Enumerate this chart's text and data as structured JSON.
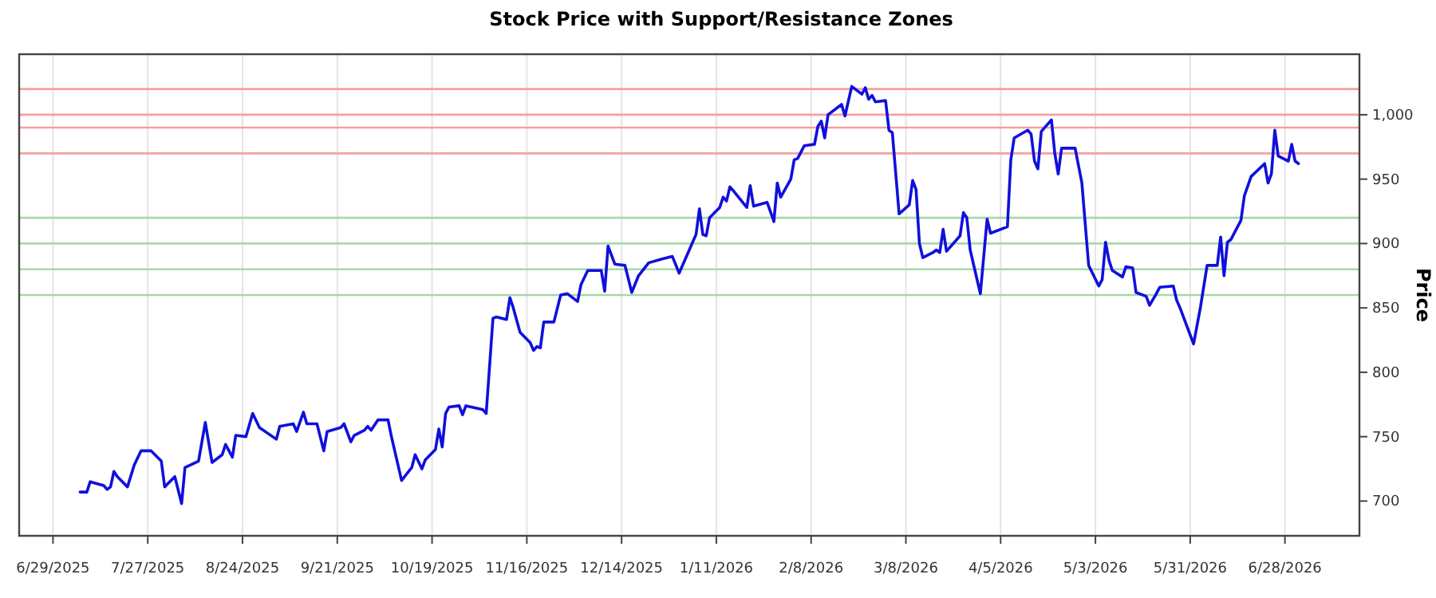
{
  "chart_data": {
    "type": "line",
    "title": "Stock Price with Support/Resistance Zones",
    "ylabel": "Price",
    "x": [
      "2025-07-07",
      "2025-07-09",
      "2025-07-10",
      "2025-07-14",
      "2025-07-15",
      "2025-07-16",
      "2025-07-17",
      "2025-07-18",
      "2025-07-21",
      "2025-07-23",
      "2025-07-25",
      "2025-07-28",
      "2025-07-31",
      "2025-08-01",
      "2025-08-04",
      "2025-08-06",
      "2025-08-07",
      "2025-08-11",
      "2025-08-13",
      "2025-08-15",
      "2025-08-18",
      "2025-08-19",
      "2025-08-21",
      "2025-08-22",
      "2025-08-25",
      "2025-08-27",
      "2025-08-29",
      "2025-09-03",
      "2025-09-04",
      "2025-09-08",
      "2025-09-09",
      "2025-09-11",
      "2025-09-12",
      "2025-09-15",
      "2025-09-17",
      "2025-09-18",
      "2025-09-22",
      "2025-09-23",
      "2025-09-25",
      "2025-09-26",
      "2025-09-29",
      "2025-09-30",
      "2025-10-01",
      "2025-10-03",
      "2025-10-06",
      "2025-10-07",
      "2025-10-10",
      "2025-10-13",
      "2025-10-14",
      "2025-10-16",
      "2025-10-17",
      "2025-10-20",
      "2025-10-21",
      "2025-10-22",
      "2025-10-23",
      "2025-10-24",
      "2025-10-27",
      "2025-10-28",
      "2025-10-29",
      "2025-11-03",
      "2025-11-04",
      "2025-11-06",
      "2025-11-07",
      "2025-11-10",
      "2025-11-11",
      "2025-11-12",
      "2025-11-14",
      "2025-11-17",
      "2025-11-18",
      "2025-11-19",
      "2025-11-20",
      "2025-11-21",
      "2025-11-24",
      "2025-11-26",
      "2025-11-28",
      "2025-12-01",
      "2025-12-02",
      "2025-12-04",
      "2025-12-08",
      "2025-12-09",
      "2025-12-10",
      "2025-12-12",
      "2025-12-15",
      "2025-12-17",
      "2025-12-19",
      "2025-12-22",
      "2025-12-26",
      "2025-12-29",
      "2025-12-31",
      "2026-01-02",
      "2026-01-05",
      "2026-01-06",
      "2026-01-07",
      "2026-01-08",
      "2026-01-09",
      "2026-01-12",
      "2026-01-13",
      "2026-01-14",
      "2026-01-15",
      "2026-01-16",
      "2026-01-20",
      "2026-01-21",
      "2026-01-22",
      "2026-01-26",
      "2026-01-28",
      "2026-01-29",
      "2026-01-30",
      "2026-02-02",
      "2026-02-03",
      "2026-02-04",
      "2026-02-06",
      "2026-02-09",
      "2026-02-10",
      "2026-02-11",
      "2026-02-12",
      "2026-02-13",
      "2026-02-17",
      "2026-02-18",
      "2026-02-20",
      "2026-02-23",
      "2026-02-24",
      "2026-02-25",
      "2026-02-26",
      "2026-02-27",
      "2026-03-02",
      "2026-03-03",
      "2026-03-04",
      "2026-03-06",
      "2026-03-09",
      "2026-03-10",
      "2026-03-11",
      "2026-03-12",
      "2026-03-13",
      "2026-03-16",
      "2026-03-17",
      "2026-03-18",
      "2026-03-19",
      "2026-03-20",
      "2026-03-24",
      "2026-03-25",
      "2026-03-26",
      "2026-03-27",
      "2026-03-30",
      "2026-04-01",
      "2026-04-02",
      "2026-04-07",
      "2026-04-08",
      "2026-04-09",
      "2026-04-13",
      "2026-04-14",
      "2026-04-15",
      "2026-04-16",
      "2026-04-17",
      "2026-04-20",
      "2026-04-21",
      "2026-04-22",
      "2026-04-23",
      "2026-04-27",
      "2026-04-29",
      "2026-05-01",
      "2026-05-04",
      "2026-05-05",
      "2026-05-06",
      "2026-05-07",
      "2026-05-08",
      "2026-05-11",
      "2026-05-12",
      "2026-05-14",
      "2026-05-15",
      "2026-05-18",
      "2026-05-19",
      "2026-05-21",
      "2026-05-22",
      "2026-05-26",
      "2026-05-27",
      "2026-05-28",
      "2026-06-01",
      "2026-06-03",
      "2026-06-05",
      "2026-06-08",
      "2026-06-09",
      "2026-06-10",
      "2026-06-11",
      "2026-06-12",
      "2026-06-15",
      "2026-06-16",
      "2026-06-18",
      "2026-06-22",
      "2026-06-23",
      "2026-06-24",
      "2026-06-25",
      "2026-06-26",
      "2026-06-29",
      "2026-06-30",
      "2026-07-01",
      "2026-07-02"
    ],
    "series": [
      {
        "color": "#1010dd",
        "values": [
          707,
          707,
          715,
          712,
          709,
          711,
          723,
          719,
          711,
          728,
          739,
          739,
          731,
          711,
          719,
          698,
          726,
          731,
          761,
          730,
          736,
          744,
          734,
          751,
          750,
          768,
          757,
          748,
          758,
          760,
          754,
          769,
          760,
          760,
          739,
          754,
          757,
          760,
          746,
          751,
          755,
          758,
          755,
          763,
          763,
          750,
          716,
          726,
          736,
          725,
          732,
          740,
          756,
          742,
          768,
          773,
          774,
          767,
          774,
          771,
          768,
          842,
          843,
          841,
          858,
          850,
          831,
          823,
          817,
          820,
          819,
          839,
          839,
          860,
          861,
          855,
          868,
          879,
          879,
          863,
          898,
          884,
          883,
          862,
          875,
          885,
          888,
          890,
          877,
          889,
          907,
          927,
          907,
          906,
          920,
          928,
          936,
          933,
          944,
          941,
          928,
          945,
          929,
          932,
          917,
          947,
          936,
          950,
          965,
          966,
          976,
          977,
          991,
          995,
          982,
          1000,
          1008,
          999,
          1022,
          1016,
          1021,
          1012,
          1015,
          1010,
          1011,
          988,
          986,
          923,
          930,
          949,
          942,
          900,
          889,
          893,
          895,
          893,
          911,
          894,
          906,
          924,
          920,
          895,
          861,
          919,
          908,
          913,
          965,
          982,
          988,
          985,
          964,
          958,
          987,
          996,
          970,
          954,
          974,
          974,
          947,
          883,
          867,
          872,
          901,
          887,
          879,
          874,
          882,
          881,
          862,
          859,
          852,
          861,
          866,
          867,
          856,
          850,
          822,
          850,
          883,
          883,
          905,
          875,
          901,
          903,
          918,
          937,
          952,
          962,
          947,
          954,
          988,
          968,
          964,
          977,
          964,
          962
        ]
      }
    ],
    "xlim": [
      "2025-06-19",
      "2026-07-20"
    ],
    "xticks": [
      {
        "value": "2025-06-29",
        "label": "6/29/2025"
      },
      {
        "value": "2025-07-27",
        "label": "7/27/2025"
      },
      {
        "value": "2025-08-24",
        "label": "8/24/2025"
      },
      {
        "value": "2025-09-21",
        "label": "9/21/2025"
      },
      {
        "value": "2025-10-19",
        "label": "10/19/2025"
      },
      {
        "value": "2025-11-16",
        "label": "11/16/2025"
      },
      {
        "value": "2025-12-14",
        "label": "12/14/2025"
      },
      {
        "value": "2026-01-11",
        "label": "1/11/2026"
      },
      {
        "value": "2026-02-08",
        "label": "2/8/2026"
      },
      {
        "value": "2026-03-08",
        "label": "3/8/2026"
      },
      {
        "value": "2026-04-05",
        "label": "4/5/2026"
      },
      {
        "value": "2026-05-03",
        "label": "5/3/2026"
      },
      {
        "value": "2026-05-31",
        "label": "5/31/2026"
      },
      {
        "value": "2026-06-28",
        "label": "6/28/2026"
      }
    ],
    "ylim": [
      673,
      1047
    ],
    "yticks": [
      700,
      750,
      800,
      850,
      900,
      950,
      {
        "value": 1000,
        "label": "1,000"
      }
    ],
    "grid": "x",
    "line_style": "solid",
    "marker": "none",
    "ref_lines": [
      {
        "axis": "y",
        "value": 970,
        "color": "#f4a0a0"
      },
      {
        "axis": "y",
        "value": 990,
        "color": "#f4a0a0"
      },
      {
        "axis": "y",
        "value": 1000,
        "color": "#f4a0a0"
      },
      {
        "axis": "y",
        "value": 1020,
        "color": "#f4a0a0"
      },
      {
        "axis": "y",
        "value": 860,
        "color": "#a8d8a8"
      },
      {
        "axis": "y",
        "value": 880,
        "color": "#a8d8a8"
      },
      {
        "axis": "y",
        "value": 900,
        "color": "#a8d8a8"
      },
      {
        "axis": "y",
        "value": 920,
        "color": "#a8d8a8"
      }
    ]
  }
}
